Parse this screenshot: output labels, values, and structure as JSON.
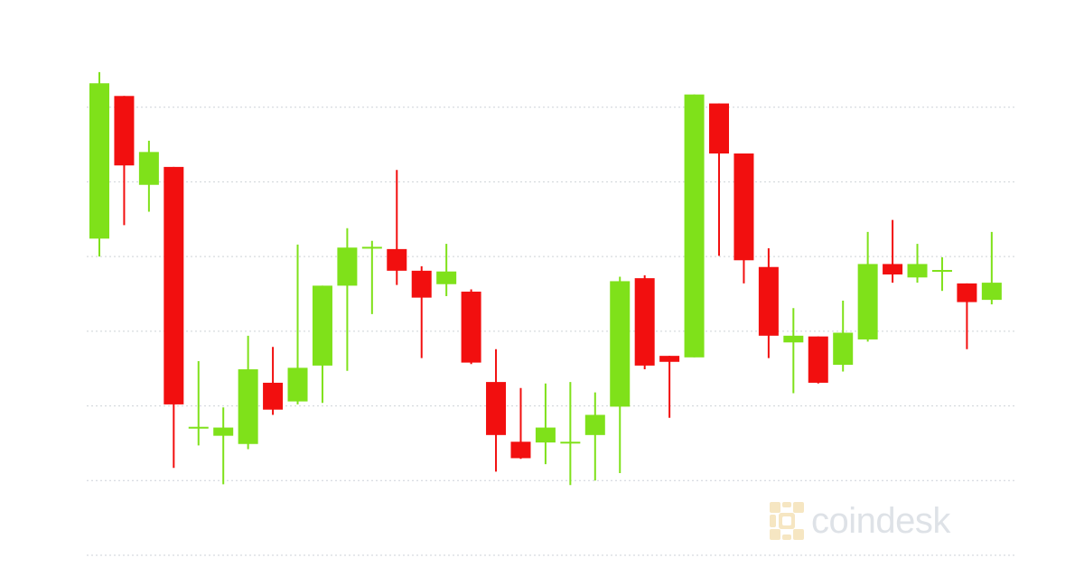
{
  "chart_data": {
    "type": "candlestick",
    "ylim": [
      0,
      7
    ],
    "gridlines": [
      0,
      1,
      2,
      3,
      4,
      5,
      6
    ],
    "grid": true,
    "colors": {
      "up": "#7fe11a",
      "down": "#f20f0f",
      "grid": "#cdd2d8"
    },
    "candles": [
      {
        "o": 4.24,
        "c": 6.32,
        "h": 6.47,
        "l": 4.0
      },
      {
        "o": 6.15,
        "c": 5.22,
        "h": 6.15,
        "l": 4.42
      },
      {
        "o": 4.96,
        "c": 5.4,
        "h": 5.55,
        "l": 4.6
      },
      {
        "o": 5.2,
        "c": 2.02,
        "h": 5.2,
        "l": 1.17
      },
      {
        "o": 1.72,
        "c": 1.72,
        "h": 2.6,
        "l": 1.47
      },
      {
        "o": 1.6,
        "c": 1.71,
        "h": 1.98,
        "l": 0.95
      },
      {
        "o": 1.49,
        "c": 2.49,
        "h": 2.94,
        "l": 1.42
      },
      {
        "o": 2.31,
        "c": 1.95,
        "h": 2.79,
        "l": 1.88
      },
      {
        "o": 2.06,
        "c": 2.51,
        "h": 4.16,
        "l": 2.02
      },
      {
        "o": 2.54,
        "c": 3.61,
        "h": 3.61,
        "l": 2.04
      },
      {
        "o": 3.61,
        "c": 4.12,
        "h": 4.38,
        "l": 2.47
      },
      {
        "o": 4.11,
        "c": 4.13,
        "h": 4.21,
        "l": 3.23
      },
      {
        "o": 4.1,
        "c": 3.81,
        "h": 5.16,
        "l": 3.62
      },
      {
        "o": 3.81,
        "c": 3.45,
        "h": 3.87,
        "l": 2.64
      },
      {
        "o": 3.63,
        "c": 3.8,
        "h": 4.17,
        "l": 3.47
      },
      {
        "o": 3.53,
        "c": 2.58,
        "h": 3.56,
        "l": 2.56
      },
      {
        "o": 2.32,
        "c": 1.61,
        "h": 2.76,
        "l": 1.12
      },
      {
        "o": 1.52,
        "c": 1.3,
        "h": 2.24,
        "l": 1.29
      },
      {
        "o": 1.51,
        "c": 1.71,
        "h": 2.3,
        "l": 1.22
      },
      {
        "o": 1.52,
        "c": 1.52,
        "h": 2.32,
        "l": 0.94
      },
      {
        "o": 1.61,
        "c": 1.88,
        "h": 2.18,
        "l": 1.0
      },
      {
        "o": 1.99,
        "c": 3.67,
        "h": 3.73,
        "l": 1.1
      },
      {
        "o": 3.71,
        "c": 2.54,
        "h": 3.75,
        "l": 2.49
      },
      {
        "o": 2.67,
        "c": 2.59,
        "h": 2.67,
        "l": 1.84
      },
      {
        "o": 2.65,
        "c": 6.17,
        "h": 6.17,
        "l": 2.65
      },
      {
        "o": 6.05,
        "c": 5.38,
        "h": 6.05,
        "l": 4.01
      },
      {
        "o": 5.38,
        "c": 3.95,
        "h": 5.38,
        "l": 3.64
      },
      {
        "o": 3.86,
        "c": 2.94,
        "h": 4.11,
        "l": 2.64
      },
      {
        "o": 2.85,
        "c": 2.94,
        "h": 3.31,
        "l": 2.17
      },
      {
        "o": 2.93,
        "c": 2.31,
        "h": 2.93,
        "l": 2.3
      },
      {
        "o": 2.55,
        "c": 2.98,
        "h": 3.41,
        "l": 2.46
      },
      {
        "o": 2.89,
        "c": 3.9,
        "h": 4.33,
        "l": 2.86
      },
      {
        "o": 3.9,
        "c": 3.76,
        "h": 4.49,
        "l": 3.65
      },
      {
        "o": 3.72,
        "c": 3.9,
        "h": 4.17,
        "l": 3.65
      },
      {
        "o": 3.82,
        "c": 3.82,
        "h": 3.99,
        "l": 3.54
      },
      {
        "o": 3.64,
        "c": 3.39,
        "h": 3.64,
        "l": 2.76
      },
      {
        "o": 3.42,
        "c": 3.65,
        "h": 4.33,
        "l": 3.36
      }
    ]
  },
  "watermark": {
    "brand": "coindesk",
    "logo_color": "#f5e2b8"
  }
}
